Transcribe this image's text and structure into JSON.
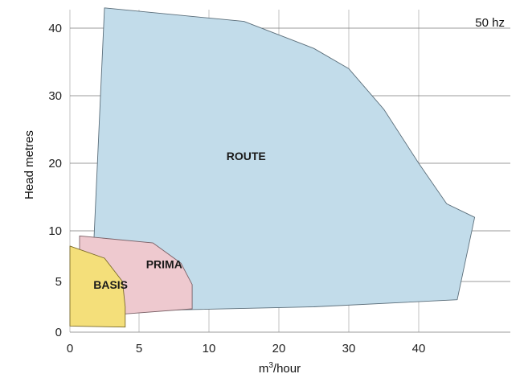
{
  "chart_data": {
    "type": "area",
    "title": "",
    "xlabel_base": "m",
    "xlabel_sup": "3",
    "xlabel_rest": "/hour",
    "ylabel": "Head metres",
    "annotation": "50 hz",
    "x_ticks": [
      0,
      5,
      10,
      20,
      30,
      40
    ],
    "y_ticks": [
      0,
      5,
      10,
      20,
      30,
      40
    ],
    "x_tick_labels": [
      "0",
      "5",
      "10",
      "20",
      "30",
      "40"
    ],
    "y_tick_labels": [
      "0",
      "5",
      "10",
      "20",
      "30",
      "40"
    ],
    "grid": true,
    "series": [
      {
        "name": "ROUTE",
        "color": "#c2dcea",
        "stroke": "#5b6e7a",
        "points": [
          [
            2.5,
            43
          ],
          [
            15,
            41
          ],
          [
            25,
            37
          ],
          [
            30,
            34
          ],
          [
            35,
            28
          ],
          [
            40,
            20
          ],
          [
            44,
            14
          ],
          [
            48,
            12
          ],
          [
            45.5,
            3.2
          ],
          [
            25,
            2.5
          ],
          [
            1.5,
            2
          ],
          [
            2.5,
            43
          ]
        ]
      },
      {
        "name": "PRIMA",
        "color": "#eec9cf",
        "stroke": "#7a6066",
        "points": [
          [
            0.7,
            9.5
          ],
          [
            6,
            8.8
          ],
          [
            8,
            6.8
          ],
          [
            8.8,
            4.7
          ],
          [
            8.8,
            2.3
          ],
          [
            4,
            1.8
          ],
          [
            0.7,
            1.8
          ],
          [
            0.7,
            9.5
          ]
        ]
      },
      {
        "name": "BASIS",
        "color": "#f4df7a",
        "stroke": "#7a6a2a",
        "points": [
          [
            0,
            8.5
          ],
          [
            2.5,
            7.3
          ],
          [
            3.8,
            5
          ],
          [
            4,
            2.5
          ],
          [
            4,
            0.5
          ],
          [
            0,
            0.6
          ],
          [
            0,
            8.5
          ]
        ]
      }
    ],
    "labels": [
      {
        "text": "ROUTE",
        "x": 12.5,
        "y": 20.5
      },
      {
        "text": "PRIMA",
        "x": 5.5,
        "y": 6.3
      },
      {
        "text": "BASIS",
        "x": 1.7,
        "y": 4.3
      }
    ]
  }
}
